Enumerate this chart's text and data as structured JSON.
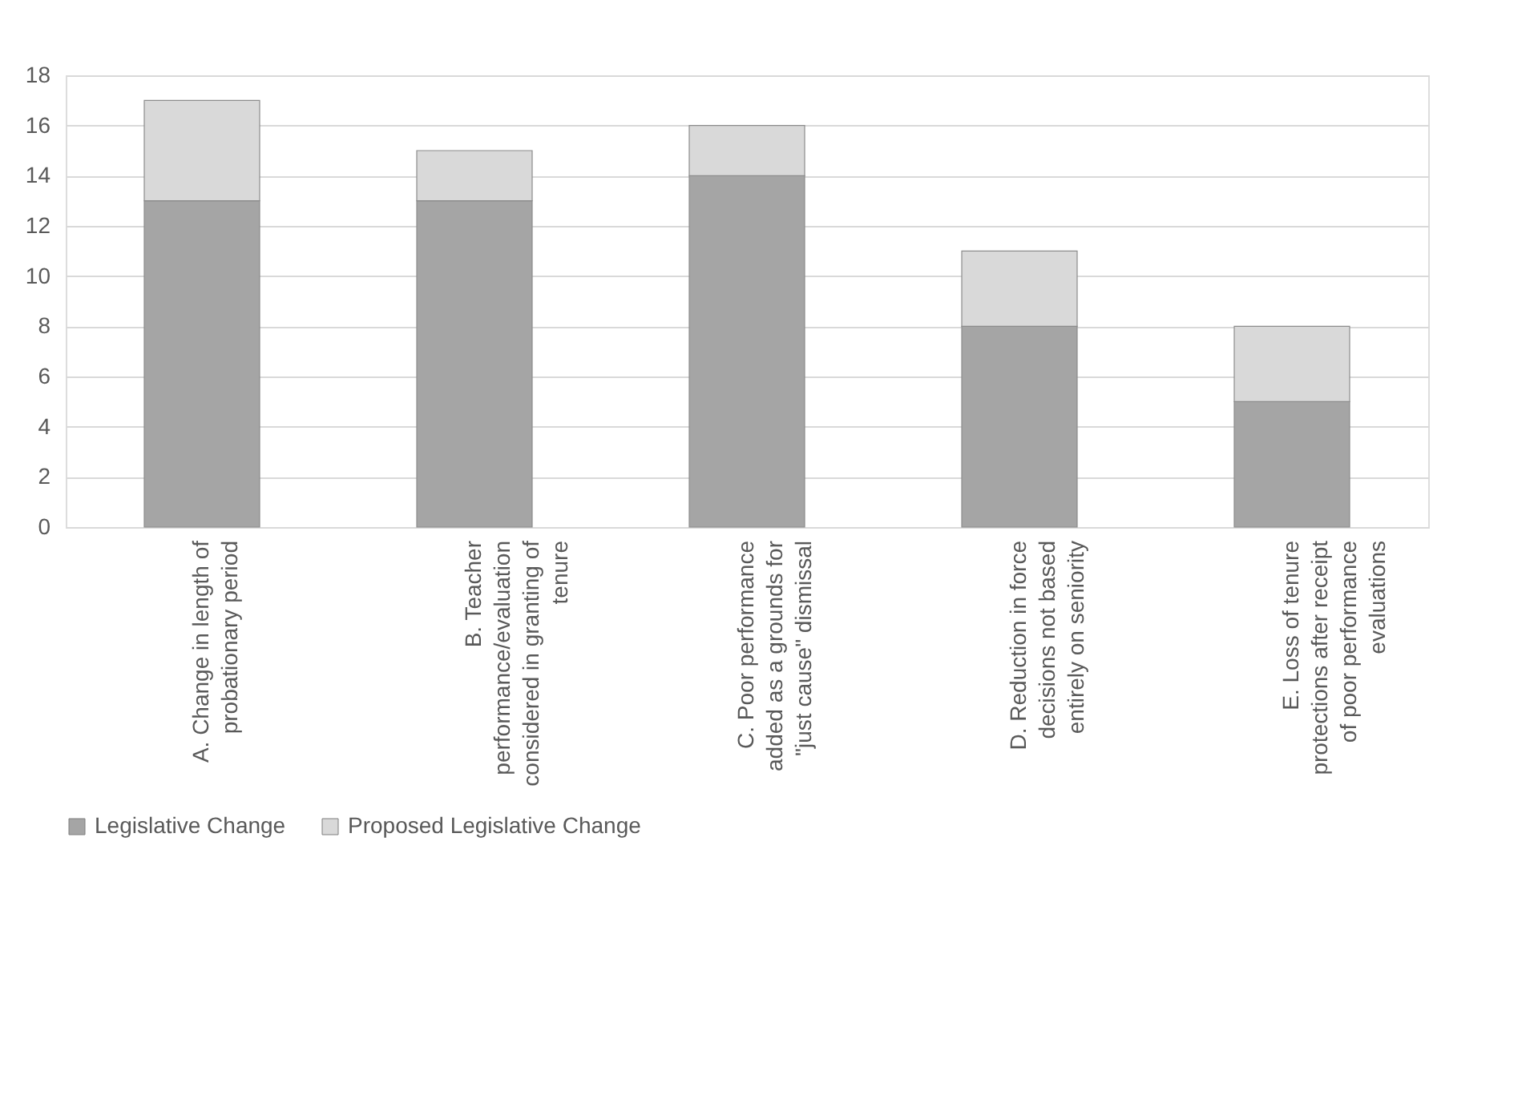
{
  "chart_data": {
    "type": "bar",
    "stacked": true,
    "categories": [
      "A.  Change in length of probationary period",
      "B.  Teacher performance/evaluation considered in granting of tenure",
      "C.  Poor performance added as a grounds for \"just cause\" dismissal",
      "D.  Reduction in force decisions not based entirely on seniority",
      "E.  Loss of tenure protections after receipt of poor performance evaluations"
    ],
    "series": [
      {
        "name": "Legislative Change",
        "color": "#a5a5a5",
        "values": [
          13,
          13,
          14,
          8,
          5
        ]
      },
      {
        "name": "Proposed Legislative Change",
        "color": "#d9d9d9",
        "values": [
          4,
          2,
          2,
          3,
          3
        ]
      }
    ],
    "ylim": [
      0,
      18
    ],
    "yticks": [
      0,
      2,
      4,
      6,
      8,
      10,
      12,
      14,
      16,
      18
    ],
    "grid": "y",
    "legend": "bottom"
  }
}
